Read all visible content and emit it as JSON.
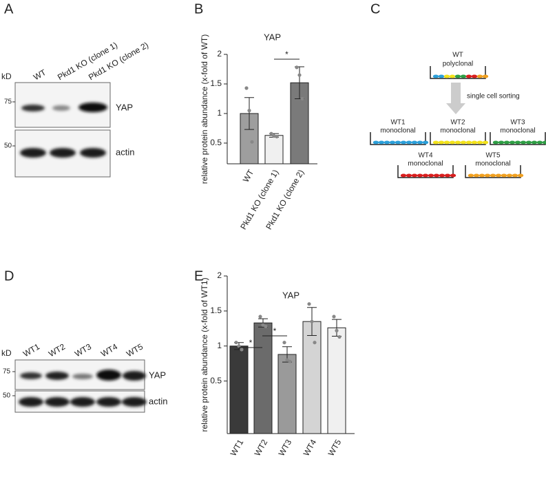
{
  "panels": [
    "A",
    "B",
    "C",
    "D",
    "E"
  ],
  "blot_a": {
    "unit": "kD",
    "markers": [
      "75",
      "50"
    ],
    "lanes": [
      "WT",
      "Pkd1 KO (clone 1)",
      "Pkd1 KO (clone 2)"
    ],
    "bands": [
      "YAP",
      "actin"
    ]
  },
  "blot_d": {
    "unit": "kD",
    "markers": [
      "75",
      "50"
    ],
    "lanes": [
      "WT1",
      "WT2",
      "WT3",
      "WT4",
      "WT5"
    ],
    "bands": [
      "YAP",
      "actin"
    ]
  },
  "diagram": {
    "source": {
      "name": "WT",
      "type": "polyclonal"
    },
    "step": "single cell sorting",
    "clones": [
      {
        "name": "WT1",
        "type": "monoclonal",
        "color": "#2b9fd9"
      },
      {
        "name": "WT2",
        "type": "monoclonal",
        "color": "#f2e21b"
      },
      {
        "name": "WT3",
        "type": "monoclonal",
        "color": "#2e9e44"
      },
      {
        "name": "WT4",
        "type": "monoclonal",
        "color": "#d81e1e"
      },
      {
        "name": "WT5",
        "type": "monoclonal",
        "color": "#f0a020"
      }
    ]
  },
  "chart_data": [
    {
      "type": "bar",
      "title": "YAP",
      "y_label": "relative protein abundance (x-fold of WT)",
      "categories": [
        "WT",
        "Pkd1 KO (clone 1)",
        "Pkd1 KO (clone 2)"
      ],
      "values": [
        1.0,
        0.63,
        1.52
      ],
      "errors": [
        0.27,
        0.03,
        0.27
      ],
      "points": [
        [
          1.43,
          1.05,
          0.52
        ],
        [
          0.66,
          0.62,
          0.61
        ],
        [
          1.78,
          1.65,
          1.25
        ]
      ],
      "colors": [
        "#9e9e9e",
        "#f0f0f0",
        "#7a7a7a"
      ],
      "ylim": [
        0.15,
        2.0
      ],
      "yticks": [
        0.5,
        1.0,
        1.5,
        2.0
      ],
      "annotations": [
        "*"
      ]
    },
    {
      "type": "bar",
      "title": "YAP",
      "y_label": "relative protein abundance (x-fold of WT1)",
      "categories": [
        "WT1",
        "WT2",
        "WT3",
        "WT4",
        "WT5"
      ],
      "values": [
        1.0,
        1.33,
        0.88,
        1.35,
        1.26
      ],
      "errors": [
        0.05,
        0.06,
        0.11,
        0.2,
        0.12
      ],
      "points": [
        [
          1.05,
          1.0,
          0.95
        ],
        [
          1.42,
          1.3,
          1.28
        ],
        [
          1.05,
          0.8,
          0.78
        ],
        [
          1.6,
          1.35,
          1.05
        ],
        [
          1.42,
          1.22,
          1.13
        ]
      ],
      "colors": [
        "#3a3a3a",
        "#6b6b6b",
        "#9a9a9a",
        "#d4d4d4",
        "#f0f0f0"
      ],
      "ylim": [
        -0.25,
        2.0
      ],
      "yticks": [
        0.5,
        1.0,
        1.5,
        2.0
      ],
      "annotations": [
        "*",
        "*"
      ]
    }
  ]
}
